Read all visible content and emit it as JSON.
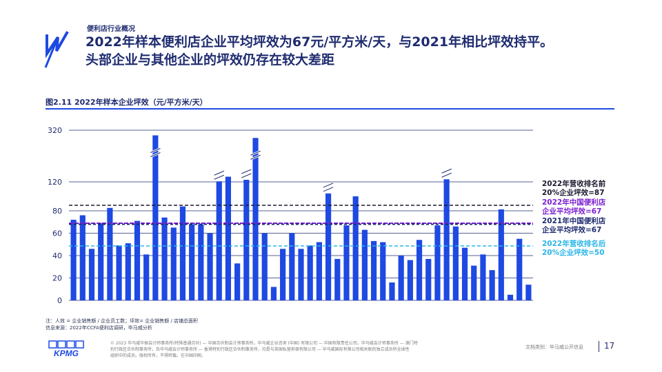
{
  "header": {
    "kicker": "便利店行业概况",
    "title_line1": "2022年样本便利店企业平均坪效为67元/平方米/天，与2021年相比坪效持平。",
    "title_line2": "头部企业与其他企业的坪效仍存在较大差距"
  },
  "figure": {
    "title": "图2.11 2022年样本企业坪效（元/平方米/天）"
  },
  "chart_data": {
    "type": "bar",
    "title": "图2.11 2022年样本企业坪效（元/平方米/天）",
    "xlabel": "",
    "ylabel": "",
    "y_axis_scale": "broken: linear 0–80, then compressed segment to 120, then break to 320",
    "y_ticks": [
      "0",
      "20",
      "40",
      "60",
      "80",
      "120",
      "320"
    ],
    "grid": true,
    "bar_color": "#1e49e2",
    "values": [
      72,
      76,
      46,
      69,
      84,
      49,
      51,
      71,
      41,
      300,
      74,
      65,
      86,
      68,
      68,
      60,
      122,
      140,
      33,
      128,
      290,
      60,
      12,
      46,
      60,
      46,
      49,
      52,
      104,
      37,
      67,
      100,
      63,
      53,
      52,
      16,
      40,
      36,
      54,
      37,
      67,
      130,
      66,
      47,
      31,
      41,
      27,
      82,
      5,
      55,
      14
    ],
    "broken_bars": [
      9,
      16,
      19,
      20,
      28,
      41
    ],
    "reference_lines": [
      {
        "label_line1": "2022年营收排名前",
        "label_line2": "20%企业坪效=87",
        "value": 87,
        "color": "#1a1a2e",
        "style": "dashed"
      },
      {
        "label_line1": "2022年中国便利店",
        "label_line2": "企业平均坪效=67",
        "value": 67,
        "color": "#7b1fd0",
        "style": "dashed"
      },
      {
        "label_line1": "2021年中国便利店",
        "label_line2": "企业平均坪效=67",
        "value": 67,
        "color": "#1e2b6f",
        "style": "dashed"
      },
      {
        "label_line1": "2022年营收排名后",
        "label_line2": "20%企业坪效=50",
        "value": 50,
        "color": "#29b6e8",
        "style": "dashed"
      }
    ]
  },
  "notes": {
    "line1": "注：人效 = 企业销售额 / 企业员工数；坪效= 企业销售额 / 店铺总面积",
    "line2": "信息来源：2022年CCFA便利店调研，毕马威分析"
  },
  "footer": {
    "logo_text": "KPMG",
    "legal_line1": "© 2023 毕马威华振会计师事务所(特殊普通合伙) — 中国合伙制会计师事务所，毕马威企业咨询 (中国) 有限公司 — 中国有限责任公司，毕马威会计师事务所 — 澳门特",
    "legal_line2": "别行政区合伙制事务所，及毕马威会计师事务所 — 香港特别行政区合伙制事务所，均是与英国私营担保有限公司 — 毕马威国际有限公司相关联的独立成员所全球性",
    "legal_line3": "组织中的成员。版权所有，不得转载。在中国印刷。",
    "doc_class": "文档类别：毕马威公开信息",
    "page_number": "17"
  }
}
